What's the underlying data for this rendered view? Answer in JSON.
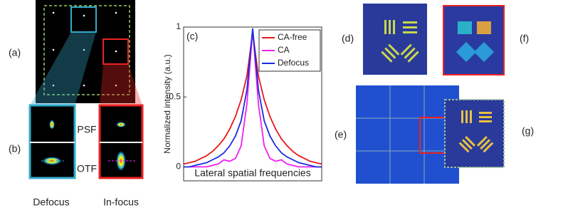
{
  "panel_labels": {
    "a": "(a)",
    "b": "(b)",
    "c": "(c)",
    "d": "(d)",
    "e": "(e)",
    "f": "(f)",
    "g": "(g)"
  },
  "row_labels": {
    "psf": "PSF",
    "otf": "OTF"
  },
  "column_labels": {
    "defocus": "Defocus",
    "in_focus": "In-focus"
  },
  "chart_data": {
    "type": "line",
    "x_label": "Lateral spatial frequencies",
    "y_label": "Normalized intensity (a.u.)",
    "categories": [
      null,
      null,
      null,
      null,
      null,
      null,
      null,
      null,
      null,
      null,
      null,
      null,
      null,
      null,
      null,
      null,
      null,
      null,
      null,
      null,
      null,
      null,
      null,
      null,
      null
    ],
    "series": [
      {
        "name": "CA-free",
        "color": "#e8181c",
        "values": [
          0.02,
          0.03,
          0.04,
          0.06,
          0.08,
          0.11,
          0.15,
          0.2,
          0.27,
          0.36,
          0.48,
          0.65,
          0.96,
          0.65,
          0.48,
          0.36,
          0.27,
          0.2,
          0.15,
          0.11,
          0.08,
          0.06,
          0.04,
          0.03,
          0.02
        ]
      },
      {
        "name": "CA",
        "color": "#f020f0",
        "values": [
          0,
          0,
          0,
          0,
          0,
          0.01,
          0.02,
          0.05,
          0.04,
          0.06,
          0.15,
          0.45,
          0.98,
          0.45,
          0.15,
          0.06,
          0.04,
          0.05,
          0.02,
          0.01,
          0,
          0,
          0,
          0,
          0
        ]
      },
      {
        "name": "Defocus",
        "color": "#1a2ce0",
        "values": [
          0,
          0,
          0.01,
          0.02,
          0.03,
          0.05,
          0.07,
          0.1,
          0.15,
          0.22,
          0.33,
          0.55,
          0.99,
          0.55,
          0.33,
          0.22,
          0.15,
          0.1,
          0.07,
          0.05,
          0.03,
          0.02,
          0.01,
          0,
          0
        ]
      }
    ],
    "ylim": [
      -0.1,
      1
    ],
    "yticks": [
      0,
      0.5,
      1
    ],
    "legend": "upper-right"
  }
}
